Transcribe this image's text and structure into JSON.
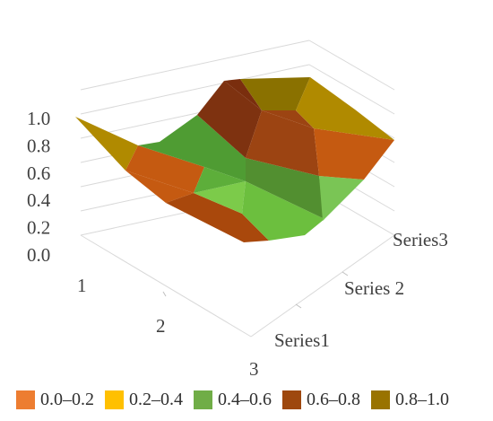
{
  "chart_data": {
    "type": "surface",
    "z_axis": {
      "ticks": [
        "0.0",
        "0.2",
        "0.4",
        "0.6",
        "0.8",
        "1.0"
      ],
      "range": [
        0,
        1
      ]
    },
    "x_axis": {
      "categories": [
        "1",
        "2",
        "3"
      ]
    },
    "series_axis": {
      "categories": [
        "Series1",
        "Series 2",
        "Series3"
      ]
    },
    "legend_position": "bottom",
    "grid": true,
    "bands": [
      {
        "label": "0.0–0.2",
        "color": "#ED7D31"
      },
      {
        "label": "0.2–0.4",
        "color": "#FFC000"
      },
      {
        "label": "0.4–0.6",
        "color": "#70AD47"
      },
      {
        "label": "0.6–0.8",
        "color": "#9E480E"
      },
      {
        "label": "0.8–1.0",
        "color": "#997300"
      }
    ]
  }
}
